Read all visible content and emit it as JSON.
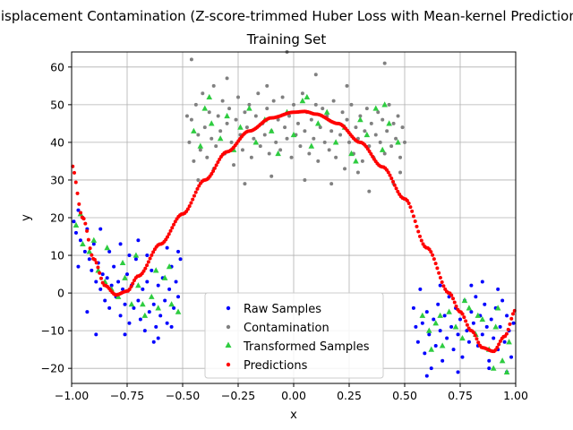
{
  "chart_data": {
    "type": "scatter",
    "title": "Displacement Contamination (Z-score-trimmed Huber Loss with Mean-kernel Prediction)",
    "subtitle": "Training Set",
    "xlabel": "x",
    "ylabel": "y",
    "xlim": [
      -1.0,
      1.0
    ],
    "ylim": [
      -24,
      64
    ],
    "xticks": [
      -1.0,
      -0.75,
      -0.5,
      -0.25,
      0.0,
      0.25,
      0.5,
      0.75,
      1.0
    ],
    "xtick_labels": [
      "−1.00",
      "−0.75",
      "−0.50",
      "−0.25",
      "0.00",
      "0.25",
      "0.50",
      "0.75",
      "1.00"
    ],
    "yticks": [
      -20,
      -10,
      0,
      10,
      20,
      30,
      40,
      50,
      60
    ],
    "ytick_labels": [
      "−20",
      "−10",
      "0",
      "10",
      "20",
      "30",
      "40",
      "50",
      "60"
    ],
    "grid": true,
    "legend_position": "bottom-center",
    "series": [
      {
        "name": "Raw Samples",
        "marker": "circle",
        "color": "#0000ff",
        "points": [
          [
            -0.99,
            19
          ],
          [
            -0.98,
            16
          ],
          [
            -0.97,
            22
          ],
          [
            -0.96,
            14
          ],
          [
            -0.95,
            20
          ],
          [
            -0.94,
            11
          ],
          [
            -0.93,
            17
          ],
          [
            -0.92,
            9
          ],
          [
            -0.91,
            6
          ],
          [
            -0.9,
            13
          ],
          [
            -0.89,
            3
          ],
          [
            -0.88,
            8
          ],
          [
            -0.87,
            1
          ],
          [
            -0.86,
            5
          ],
          [
            -0.85,
            -2
          ],
          [
            -0.84,
            4
          ],
          [
            -0.83,
            -4
          ],
          [
            -0.82,
            2
          ],
          [
            -0.81,
            7
          ],
          [
            -0.8,
            -1
          ],
          [
            -0.79,
            3
          ],
          [
            -0.78,
            -6
          ],
          [
            -0.77,
            1
          ],
          [
            -0.76,
            -3
          ],
          [
            -0.75,
            5
          ],
          [
            -0.74,
            -8
          ],
          [
            -0.73,
            2
          ],
          [
            -0.72,
            -4
          ],
          [
            -0.71,
            9
          ],
          [
            -0.7,
            -2
          ],
          [
            -0.69,
            -7
          ],
          [
            -0.68,
            1
          ],
          [
            -0.67,
            -10
          ],
          [
            -0.66,
            3
          ],
          [
            -0.65,
            -5
          ],
          [
            -0.64,
            6
          ],
          [
            -0.63,
            -3
          ],
          [
            -0.62,
            -9
          ],
          [
            -0.61,
            2
          ],
          [
            -0.6,
            -6
          ],
          [
            -0.59,
            4
          ],
          [
            -0.58,
            -2
          ],
          [
            -0.57,
            -8
          ],
          [
            -0.56,
            1
          ],
          [
            -0.55,
            7
          ],
          [
            -0.54,
            -4
          ],
          [
            -0.53,
            3
          ],
          [
            -0.52,
            -1
          ],
          [
            -0.51,
            9
          ],
          [
            -0.97,
            7
          ],
          [
            -0.93,
            -5
          ],
          [
            -0.87,
            17
          ],
          [
            -0.83,
            11
          ],
          [
            -0.78,
            13
          ],
          [
            -0.74,
            10
          ],
          [
            -0.7,
            14
          ],
          [
            -0.66,
            10
          ],
          [
            -0.61,
            -12
          ],
          [
            -0.57,
            12
          ],
          [
            -0.89,
            -11
          ],
          [
            -0.76,
            -11
          ],
          [
            -0.63,
            -13
          ],
          [
            -0.55,
            -9
          ],
          [
            -0.52,
            11
          ],
          [
            0.54,
            -4
          ],
          [
            0.55,
            -9
          ],
          [
            0.56,
            -13
          ],
          [
            0.57,
            1
          ],
          [
            0.58,
            -8
          ],
          [
            0.59,
            -16
          ],
          [
            0.6,
            -5
          ],
          [
            0.61,
            -11
          ],
          [
            0.62,
            -20
          ],
          [
            0.63,
            -7
          ],
          [
            0.64,
            -14
          ],
          [
            0.65,
            -3
          ],
          [
            0.66,
            -10
          ],
          [
            0.67,
            -18
          ],
          [
            0.68,
            -6
          ],
          [
            0.69,
            -12
          ],
          [
            0.7,
            -1
          ],
          [
            0.71,
            -9
          ],
          [
            0.72,
            -15
          ],
          [
            0.73,
            -4
          ],
          [
            0.74,
            -11
          ],
          [
            0.75,
            -7
          ],
          [
            0.76,
            -17
          ],
          [
            0.77,
            -2
          ],
          [
            0.78,
            -10
          ],
          [
            0.79,
            -13
          ],
          [
            0.8,
            -5
          ],
          [
            0.81,
            -8
          ],
          [
            0.82,
            -1
          ],
          [
            0.83,
            -14
          ],
          [
            0.84,
            -6
          ],
          [
            0.85,
            -11
          ],
          [
            0.86,
            -3
          ],
          [
            0.87,
            -9
          ],
          [
            0.88,
            -18
          ],
          [
            0.89,
            -7
          ],
          [
            0.9,
            -12
          ],
          [
            0.91,
            -4
          ],
          [
            0.92,
            -15
          ],
          [
            0.93,
            -9
          ],
          [
            0.94,
            -2
          ],
          [
            0.95,
            -13
          ],
          [
            0.96,
            -6
          ],
          [
            0.97,
            -10
          ],
          [
            0.98,
            -17
          ],
          [
            0.99,
            -8
          ],
          [
            0.6,
            -22
          ],
          [
            0.66,
            2
          ],
          [
            0.74,
            -21
          ],
          [
            0.8,
            2
          ],
          [
            0.85,
            3
          ],
          [
            0.88,
            -20
          ],
          [
            0.92,
            1
          ],
          [
            0.96,
            -21
          ]
        ]
      },
      {
        "name": "Contamination",
        "marker": "circle",
        "color": "#808080",
        "points": [
          [
            -0.47,
            40
          ],
          [
            -0.46,
            46
          ],
          [
            -0.45,
            35
          ],
          [
            -0.44,
            50
          ],
          [
            -0.43,
            42
          ],
          [
            -0.42,
            38
          ],
          [
            -0.41,
            53
          ],
          [
            -0.4,
            44
          ],
          [
            -0.39,
            36
          ],
          [
            -0.38,
            48
          ],
          [
            -0.37,
            41
          ],
          [
            -0.36,
            55
          ],
          [
            -0.35,
            39
          ],
          [
            -0.34,
            47
          ],
          [
            -0.33,
            43
          ],
          [
            -0.32,
            51
          ],
          [
            -0.31,
            37
          ],
          [
            -0.3,
            45
          ],
          [
            -0.29,
            49
          ],
          [
            -0.28,
            40
          ],
          [
            -0.27,
            34
          ],
          [
            -0.26,
            46
          ],
          [
            -0.25,
            52
          ],
          [
            -0.24,
            42
          ],
          [
            -0.23,
            38
          ],
          [
            -0.22,
            48
          ],
          [
            -0.21,
            44
          ],
          [
            -0.2,
            50
          ],
          [
            -0.19,
            36
          ],
          [
            -0.18,
            41
          ],
          [
            -0.17,
            47
          ],
          [
            -0.16,
            53
          ],
          [
            -0.15,
            39
          ],
          [
            -0.14,
            45
          ],
          [
            -0.13,
            42
          ],
          [
            -0.12,
            49
          ],
          [
            -0.11,
            37
          ],
          [
            -0.1,
            43
          ],
          [
            -0.09,
            51
          ],
          [
            -0.08,
            40
          ],
          [
            -0.07,
            46
          ],
          [
            -0.06,
            38
          ],
          [
            -0.05,
            52
          ],
          [
            -0.04,
            44
          ],
          [
            -0.03,
            41
          ],
          [
            -0.02,
            47
          ],
          [
            -0.01,
            36
          ],
          [
            0.0,
            50
          ],
          [
            0.01,
            42
          ],
          [
            0.02,
            45
          ],
          [
            0.03,
            39
          ],
          [
            0.04,
            53
          ],
          [
            0.05,
            43
          ],
          [
            0.06,
            48
          ],
          [
            0.07,
            37
          ],
          [
            0.08,
            46
          ],
          [
            0.09,
            41
          ],
          [
            0.1,
            50
          ],
          [
            0.11,
            35
          ],
          [
            0.12,
            44
          ],
          [
            0.13,
            49
          ],
          [
            0.14,
            40
          ],
          [
            0.15,
            47
          ],
          [
            0.16,
            38
          ],
          [
            0.17,
            43
          ],
          [
            0.18,
            51
          ],
          [
            0.19,
            36
          ],
          [
            0.2,
            45
          ],
          [
            0.21,
            42
          ],
          [
            0.22,
            48
          ],
          [
            0.23,
            33
          ],
          [
            0.24,
            46
          ],
          [
            0.25,
            40
          ],
          [
            0.26,
            50
          ],
          [
            0.27,
            37
          ],
          [
            0.28,
            44
          ],
          [
            0.29,
            41
          ],
          [
            0.3,
            47
          ],
          [
            0.31,
            35
          ],
          [
            0.32,
            43
          ],
          [
            0.33,
            49
          ],
          [
            0.34,
            39
          ],
          [
            0.35,
            45
          ],
          [
            0.36,
            36
          ],
          [
            0.37,
            42
          ],
          [
            0.38,
            48
          ],
          [
            0.39,
            40
          ],
          [
            0.4,
            46
          ],
          [
            0.41,
            37
          ],
          [
            0.42,
            43
          ],
          [
            0.43,
            50
          ],
          [
            0.44,
            39
          ],
          [
            0.45,
            45
          ],
          [
            0.46,
            41
          ],
          [
            0.47,
            47
          ],
          [
            0.48,
            36
          ],
          [
            0.49,
            44
          ],
          [
            0.5,
            40
          ],
          [
            -0.43,
            30
          ],
          [
            -0.36,
            33
          ],
          [
            -0.22,
            29
          ],
          [
            -0.1,
            31
          ],
          [
            0.05,
            30
          ],
          [
            0.17,
            29
          ],
          [
            0.29,
            32
          ],
          [
            0.34,
            27
          ],
          [
            0.45,
            29
          ],
          [
            -0.46,
            62
          ],
          [
            -0.3,
            57
          ],
          [
            -0.12,
            55
          ],
          [
            -0.03,
            64
          ],
          [
            0.1,
            58
          ],
          [
            0.24,
            55
          ],
          [
            0.41,
            61
          ],
          [
            0.48,
            32
          ],
          [
            -0.48,
            47
          ]
        ]
      },
      {
        "name": "Transformed Samples",
        "marker": "triangle",
        "color": "#2ecc40",
        "points": [
          [
            -0.98,
            18
          ],
          [
            -0.95,
            13
          ],
          [
            -0.92,
            11
          ],
          [
            -0.88,
            6
          ],
          [
            -0.85,
            3
          ],
          [
            -0.82,
            1
          ],
          [
            -0.79,
            -1
          ],
          [
            -0.76,
            4
          ],
          [
            -0.73,
            -3
          ],
          [
            -0.7,
            2
          ],
          [
            -0.67,
            -6
          ],
          [
            -0.64,
            -1
          ],
          [
            -0.61,
            -4
          ],
          [
            -0.58,
            4
          ],
          [
            -0.55,
            -3
          ],
          [
            -0.52,
            -5
          ],
          [
            -0.9,
            14
          ],
          [
            -0.77,
            8
          ],
          [
            -0.71,
            10
          ],
          [
            -0.62,
            6
          ],
          [
            -0.56,
            7
          ],
          [
            -0.84,
            12
          ],
          [
            -0.68,
            -3
          ],
          [
            -0.96,
            21
          ],
          [
            -0.45,
            43
          ],
          [
            -0.42,
            39
          ],
          [
            -0.4,
            49
          ],
          [
            -0.37,
            45
          ],
          [
            -0.33,
            41
          ],
          [
            -0.3,
            47
          ],
          [
            -0.27,
            38
          ],
          [
            -0.24,
            44
          ],
          [
            -0.2,
            49
          ],
          [
            -0.17,
            40
          ],
          [
            -0.13,
            46
          ],
          [
            -0.1,
            43
          ],
          [
            -0.07,
            37
          ],
          [
            -0.03,
            48
          ],
          [
            0.0,
            42
          ],
          [
            0.04,
            51
          ],
          [
            0.08,
            39
          ],
          [
            0.11,
            45
          ],
          [
            0.15,
            48
          ],
          [
            0.19,
            40
          ],
          [
            0.23,
            44
          ],
          [
            0.26,
            37
          ],
          [
            0.3,
            46
          ],
          [
            0.33,
            42
          ],
          [
            0.37,
            49
          ],
          [
            0.4,
            38
          ],
          [
            0.43,
            45
          ],
          [
            0.47,
            40
          ],
          [
            -0.38,
            52
          ],
          [
            0.06,
            52
          ],
          [
            0.28,
            35
          ],
          [
            0.41,
            50
          ],
          [
            0.58,
            -6
          ],
          [
            0.61,
            -10
          ],
          [
            0.64,
            -8
          ],
          [
            0.67,
            -14
          ],
          [
            0.7,
            -5
          ],
          [
            0.73,
            -9
          ],
          [
            0.76,
            -12
          ],
          [
            0.79,
            -4
          ],
          [
            0.82,
            -11
          ],
          [
            0.85,
            -7
          ],
          [
            0.88,
            -15
          ],
          [
            0.91,
            -9
          ],
          [
            0.94,
            -18
          ],
          [
            0.97,
            -13
          ],
          [
            0.62,
            -15
          ],
          [
            0.77,
            -2
          ],
          [
            0.9,
            -20
          ],
          [
            0.96,
            -21
          ],
          [
            0.83,
            -6
          ],
          [
            0.66,
            -6
          ],
          [
            0.92,
            -4
          ]
        ]
      },
      {
        "name": "Predictions",
        "marker": "circle",
        "color": "#ff0000",
        "curve": true
      }
    ]
  }
}
